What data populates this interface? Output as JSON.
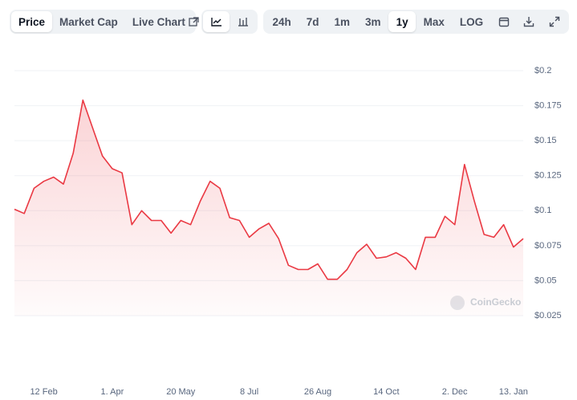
{
  "toolbar": {
    "views": [
      "Price",
      "Market Cap",
      "Live Chart"
    ],
    "active_view": 0,
    "ranges": [
      "24h",
      "7d",
      "1m",
      "3m",
      "1y",
      "Max",
      "LOG"
    ],
    "active_range": 4
  },
  "chart_data": {
    "type": "line",
    "watermark": "CoinGecko",
    "categories": [
      null,
      null,
      null,
      "12 Feb",
      null,
      null,
      null,
      null,
      null,
      null,
      "1. Apr",
      null,
      null,
      null,
      null,
      null,
      null,
      "20 May",
      null,
      null,
      null,
      null,
      null,
      null,
      "8 Jul",
      null,
      null,
      null,
      null,
      null,
      null,
      "26 Aug",
      null,
      null,
      null,
      null,
      null,
      null,
      "14 Oct",
      null,
      null,
      null,
      null,
      null,
      null,
      "2. Dec",
      null,
      null,
      null,
      null,
      null,
      "13. Jan",
      null
    ],
    "series": [
      {
        "name": "Price",
        "color": "#ea3943",
        "values": [
          0.101,
          0.098,
          0.116,
          0.121,
          0.124,
          0.119,
          0.141,
          0.179,
          0.159,
          0.139,
          0.13,
          0.127,
          0.09,
          0.1,
          0.093,
          0.093,
          0.084,
          0.093,
          0.09,
          0.107,
          0.121,
          0.116,
          0.095,
          0.093,
          0.081,
          0.087,
          0.091,
          0.08,
          0.061,
          0.058,
          0.058,
          0.062,
          0.051,
          0.051,
          0.058,
          0.07,
          0.076,
          0.066,
          0.067,
          0.07,
          0.066,
          0.058,
          0.081,
          0.081,
          0.096,
          0.09,
          0.133,
          0.107,
          0.083,
          0.081,
          0.09,
          0.074,
          0.08
        ]
      }
    ],
    "ylim": [
      0.025,
      0.2
    ],
    "yticks": [
      {
        "value": 0.025,
        "label": "$0.025"
      },
      {
        "value": 0.05,
        "label": "$0.05"
      },
      {
        "value": 0.075,
        "label": "$0.075"
      },
      {
        "value": 0.1,
        "label": "$0.1"
      },
      {
        "value": 0.125,
        "label": "$0.125"
      },
      {
        "value": 0.15,
        "label": "$0.15"
      },
      {
        "value": 0.175,
        "label": "$0.175"
      },
      {
        "value": 0.2,
        "label": "$0.2"
      }
    ],
    "grid": true
  }
}
